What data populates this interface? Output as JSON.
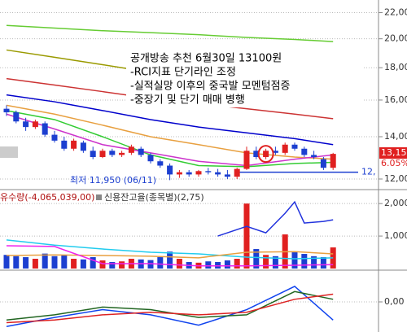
{
  "chart_data": [
    {
      "type": "candlestick",
      "annotation_lines": [
        "공개방송 추천 6월30일 13100원",
        "-RCI지표 단기라인 조정",
        "-실적실망 이후의 중국발 모멘텀점증",
        "-중장기 및 단기 매매 병행"
      ],
      "low_label": "최저 11,950 (06/11)",
      "price_label": "13,15",
      "pct_label": "6.05%",
      "line_label": "12,",
      "support_line": 12300,
      "open": [
        15500,
        15300,
        14800,
        14500,
        14700,
        14100,
        13800,
        13400,
        13700,
        13300,
        13000,
        13300,
        13100,
        13200,
        13400,
        13100,
        12800,
        12600,
        12200,
        12300,
        12200,
        12350,
        12300,
        12200,
        12100,
        12450,
        13300,
        13000,
        13300,
        13200,
        13600,
        13400,
        13100,
        12900,
        12500
      ],
      "high": [
        15700,
        15400,
        15000,
        14900,
        14800,
        14300,
        14000,
        13900,
        13800,
        13500,
        13400,
        13400,
        13300,
        13600,
        13500,
        13200,
        12900,
        12700,
        12400,
        12400,
        12400,
        12500,
        12450,
        12400,
        12500,
        13500,
        13500,
        13400,
        13500,
        13700,
        13700,
        13500,
        13300,
        13000,
        13200
      ],
      "low": [
        15100,
        14700,
        14300,
        14400,
        14000,
        13700,
        13300,
        13300,
        13200,
        12900,
        12950,
        13000,
        13000,
        13100,
        13000,
        12700,
        12500,
        11950,
        12050,
        12100,
        12100,
        12200,
        12100,
        12000,
        12000,
        12400,
        12900,
        12900,
        13100,
        13100,
        13300,
        13000,
        12900,
        12400,
        12400
      ],
      "close": [
        15300,
        14800,
        14500,
        14800,
        14100,
        13800,
        13400,
        13800,
        13300,
        13000,
        13300,
        13100,
        13200,
        13500,
        13100,
        12800,
        12600,
        12200,
        12300,
        12200,
        12350,
        12300,
        12200,
        12100,
        12450,
        13300,
        13000,
        13300,
        13200,
        13600,
        13400,
        13100,
        13000,
        12500,
        13150
      ],
      "up_color": "#e02020",
      "down_color": "#1c3fd0",
      "ylim": [
        11580,
        22900
      ],
      "log": true,
      "grid": true,
      "yticks": [
        {
          "value": 12000,
          "label": "12,000"
        },
        {
          "value": 14000,
          "label": "14,000"
        },
        {
          "value": 16000,
          "label": "16,000"
        },
        {
          "value": 18000,
          "label": "18,000"
        },
        {
          "value": 20000,
          "label": "20,000"
        },
        {
          "value": 22000,
          "label": "22,000"
        }
      ],
      "series": [
        {
          "color": "#66cc33",
          "x": [
            0,
            5,
            10,
            15,
            20,
            25,
            30,
            34
          ],
          "values": [
            21000,
            20800,
            20600,
            20450,
            20300,
            20100,
            19950,
            19800
          ]
        },
        {
          "color": "#9a9a00",
          "x": [
            0,
            5,
            10,
            15,
            20,
            25,
            30,
            34
          ],
          "values": [
            19200,
            18700,
            18200,
            17700,
            17200,
            16700,
            16200,
            15700
          ]
        },
        {
          "color": "#cc3333",
          "x": [
            0,
            5,
            10,
            15,
            20,
            25,
            30,
            34
          ],
          "values": [
            17300,
            16900,
            16500,
            16100,
            15800,
            15500,
            15200,
            14950
          ]
        },
        {
          "color": "#0000cc",
          "x": [
            0,
            5,
            10,
            15,
            20,
            25,
            30,
            34
          ],
          "values": [
            16300,
            15900,
            15400,
            14900,
            14500,
            14200,
            13900,
            13600
          ]
        },
        {
          "color": "#e8a040",
          "x": [
            0,
            5,
            10,
            15,
            20,
            25,
            30,
            34
          ],
          "values": [
            15700,
            15200,
            14600,
            14000,
            13600,
            13200,
            13000,
            12900
          ]
        },
        {
          "color": "#33cc33",
          "x": [
            0,
            5,
            10,
            15,
            20,
            25,
            30,
            34
          ],
          "values": [
            15400,
            14900,
            14000,
            13100,
            12600,
            12550,
            12700,
            12750
          ]
        },
        {
          "color": "#cc33cc",
          "x": [
            0,
            5,
            10,
            15,
            20,
            25,
            30,
            34
          ],
          "values": [
            15200,
            14400,
            13600,
            13200,
            12800,
            12600,
            12900,
            13100
          ]
        }
      ]
    },
    {
      "type": "bar",
      "legend": [
        "유수량(-4,065,039,00)",
        "신용잔고율(종목별)(2,75)"
      ],
      "values": [
        420,
        380,
        350,
        300,
        460,
        380,
        420,
        300,
        280,
        350,
        250,
        200,
        220,
        300,
        280,
        260,
        350,
        520,
        300,
        200,
        180,
        220,
        200,
        250,
        300,
        2000,
        600,
        420,
        380,
        1050,
        500,
        450,
        380,
        350,
        650
      ],
      "ylim": [
        0,
        2330
      ],
      "grid": true,
      "yticks": [
        {
          "value": 1000,
          "label": "1,000"
        },
        {
          "value": 2000,
          "label": "2,000"
        }
      ],
      "series": [
        {
          "color": "#22ccee",
          "x": [
            0,
            5,
            10,
            15,
            20,
            25,
            30,
            34
          ],
          "values": [
            880,
            720,
            600,
            500,
            450,
            350,
            300,
            330
          ]
        },
        {
          "color": "#e8a040",
          "x": [
            0,
            5,
            10,
            15,
            20,
            25,
            30,
            34
          ],
          "values": [
            400,
            420,
            400,
            380,
            330,
            500,
            520,
            450
          ]
        },
        {
          "color": "#ee22ee",
          "x": [
            0,
            5,
            10,
            15,
            20,
            25,
            30,
            34
          ],
          "values": [
            700,
            680,
            150,
            150,
            80,
            80,
            100,
            120
          ]
        },
        {
          "color": "#2233dd",
          "x": [
            22,
            25,
            27,
            29,
            30,
            31,
            33,
            34
          ],
          "values": [
            1000,
            1300,
            1100,
            1700,
            2050,
            1400,
            1450,
            1500
          ]
        }
      ]
    },
    {
      "type": "line",
      "ylim": [
        -1.1,
        1.1
      ],
      "grid": true,
      "yticks": [
        {
          "value": 0,
          "label": "0,00"
        }
      ],
      "series": [
        {
          "color": "#1144ee",
          "x": [
            0,
            5,
            10,
            15,
            20,
            25,
            30,
            34
          ],
          "values": [
            -0.95,
            -0.6,
            -0.3,
            -0.5,
            -0.9,
            -0.3,
            0.6,
            -0.7
          ]
        },
        {
          "color": "#226622",
          "x": [
            0,
            5,
            10,
            15,
            20,
            25,
            30,
            34
          ],
          "values": [
            -0.7,
            -0.5,
            -0.2,
            -0.3,
            -0.6,
            -0.5,
            0.4,
            0.1
          ]
        },
        {
          "color": "#dd2222",
          "x": [
            0,
            5,
            10,
            15,
            20,
            25,
            30,
            34
          ],
          "values": [
            -0.8,
            -0.7,
            -0.5,
            -0.4,
            -0.5,
            -0.4,
            0.1,
            0.3
          ]
        }
      ]
    }
  ]
}
